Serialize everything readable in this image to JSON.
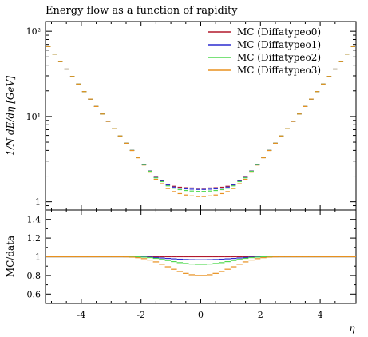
{
  "chart_data": {
    "type": "line",
    "title": "Energy flow as a function of rapidity",
    "top_panel": {
      "ylabel": "1/N dE/dη [GeV]",
      "yscale": "log",
      "ylim": [
        0.8,
        130
      ],
      "yticks": [
        1,
        10,
        100
      ],
      "ytick_labels": [
        "1",
        "10¹",
        "10²"
      ]
    },
    "ratio_panel": {
      "ylabel": "MC/data",
      "ylim": [
        0.5,
        1.5
      ],
      "yticks": [
        0.6,
        0.8,
        1.0,
        1.2,
        1.4
      ],
      "ytick_labels": [
        "0.6",
        "0.8",
        "1",
        "1.2",
        "1.4"
      ]
    },
    "xlabel": "η",
    "xlim": [
      -5.2,
      5.2
    ],
    "xticks": [
      -4,
      -2,
      0,
      2,
      4
    ],
    "xtick_labels": [
      "-4",
      "-2",
      "0",
      "2",
      "4"
    ],
    "bin_width": 0.2,
    "bin_centers": [
      -5.1,
      -4.9,
      -4.7,
      -4.5,
      -4.3,
      -4.1,
      -3.9,
      -3.7,
      -3.5,
      -3.3,
      -3.1,
      -2.9,
      -2.7,
      -2.5,
      -2.3,
      -2.1,
      -1.9,
      -1.7,
      -1.5,
      -1.3,
      -1.1,
      -0.9,
      -0.7,
      -0.5,
      -0.3,
      -0.1,
      0.1,
      0.3,
      0.5,
      0.7,
      0.9,
      1.1,
      1.3,
      1.5,
      1.7,
      1.9,
      2.1,
      2.3,
      2.5,
      2.7,
      2.9,
      3.1,
      3.3,
      3.5,
      3.7,
      3.9,
      4.1,
      4.3,
      4.5,
      4.7,
      4.9,
      5.1
    ],
    "reference": [
      66.2,
      54.0,
      44.0,
      36.0,
      29.5,
      24.0,
      19.6,
      16.0,
      13.1,
      10.7,
      8.77,
      7.19,
      5.91,
      4.86,
      4.0,
      3.31,
      2.75,
      2.3,
      1.94,
      1.77,
      1.6,
      1.52,
      1.48,
      1.46,
      1.45,
      1.44,
      1.44,
      1.45,
      1.46,
      1.48,
      1.52,
      1.6,
      1.77,
      1.94,
      2.3,
      2.75,
      3.31,
      4.0,
      4.86,
      5.91,
      7.19,
      8.77,
      10.7,
      13.1,
      16.0,
      19.6,
      24.0,
      29.5,
      36.0,
      44.0,
      54.0,
      66.2
    ],
    "series": [
      {
        "name": "MC (Diffatypeo0)",
        "color": "#b2182b",
        "ratio": [
          1,
          1,
          1,
          1,
          1,
          1,
          1,
          1,
          1,
          1,
          1,
          1,
          1,
          1,
          1,
          1,
          1,
          1,
          1,
          1,
          1,
          1,
          1,
          1,
          1,
          1,
          1,
          1,
          1,
          1,
          1,
          1,
          1,
          1,
          1,
          1,
          1,
          1,
          1,
          1,
          1,
          1,
          1,
          1,
          1,
          1,
          1,
          1,
          1,
          1,
          1,
          1
        ]
      },
      {
        "name": "MC (Diffatypeo1)",
        "color": "#2c2ccf",
        "ratio": [
          1,
          1,
          1,
          1,
          1,
          1,
          1,
          1,
          1,
          1,
          1,
          1,
          1,
          1,
          1,
          1,
          0.999,
          0.996,
          0.992,
          0.987,
          0.982,
          0.978,
          0.974,
          0.971,
          0.969,
          0.968,
          0.968,
          0.969,
          0.971,
          0.974,
          0.978,
          0.982,
          0.987,
          0.992,
          0.996,
          0.999,
          1,
          1,
          1,
          1,
          1,
          1,
          1,
          1,
          1,
          1,
          1,
          1,
          1,
          1,
          1,
          1
        ]
      },
      {
        "name": "MC (Diffatypeo2)",
        "color": "#4fd94f",
        "ratio": [
          1,
          1,
          1,
          1,
          1,
          1,
          1,
          1,
          1,
          1,
          1,
          1,
          1,
          1,
          1,
          0.999,
          0.996,
          0.991,
          0.983,
          0.972,
          0.96,
          0.948,
          0.937,
          0.928,
          0.922,
          0.919,
          0.919,
          0.922,
          0.928,
          0.937,
          0.948,
          0.96,
          0.972,
          0.983,
          0.991,
          0.996,
          0.999,
          1,
          1,
          1,
          1,
          1,
          1,
          1,
          1,
          1,
          1,
          1,
          1,
          1,
          1,
          1
        ]
      },
      {
        "name": "MC (Diffatypeo3)",
        "color": "#e8901e",
        "ratio": [
          1,
          1,
          1,
          1,
          1,
          1,
          1,
          1,
          1,
          1,
          1,
          1,
          1,
          0.999,
          0.996,
          0.99,
          0.98,
          0.965,
          0.945,
          0.92,
          0.893,
          0.866,
          0.842,
          0.822,
          0.808,
          0.8,
          0.8,
          0.808,
          0.822,
          0.842,
          0.866,
          0.893,
          0.92,
          0.945,
          0.965,
          0.98,
          0.99,
          0.996,
          0.999,
          1,
          1,
          1,
          1,
          1,
          1,
          1,
          1,
          1,
          1,
          1,
          1,
          1
        ]
      }
    ]
  }
}
